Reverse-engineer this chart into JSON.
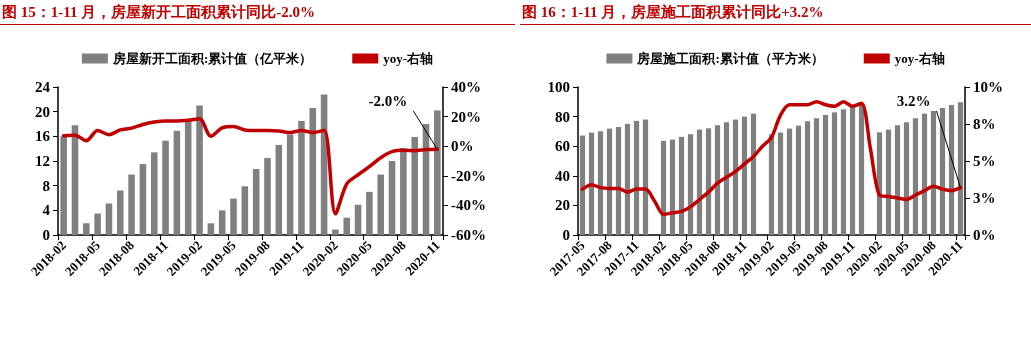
{
  "chart_data": [
    {
      "type": "bar",
      "title": "图 15：1-11 月，房屋新开工面积累计同比-2.0%",
      "categories": [
        "2018-02",
        null,
        null,
        "2018-05",
        null,
        null,
        "2018-08",
        null,
        null,
        "2018-11",
        null,
        null,
        "2019-02",
        null,
        null,
        "2019-05",
        null,
        null,
        "2019-08",
        null,
        null,
        "2019-11",
        null,
        null,
        "2020-02",
        null,
        null,
        "2020-05",
        null,
        null,
        "2020-08",
        null,
        null,
        "2020-11"
      ],
      "series": [
        {
          "name": "房屋新开工面积:累计值（亿平米）",
          "color": "#808080",
          "values": [
            16.0,
            17.8,
            1.9,
            3.5,
            5.1,
            7.2,
            9.8,
            11.5,
            13.4,
            15.3,
            16.9,
            18.5,
            21.0,
            1.9,
            4.0,
            5.9,
            7.9,
            10.7,
            12.5,
            14.6,
            16.3,
            18.5,
            20.6,
            22.8,
            0.9,
            2.8,
            4.9,
            7.0,
            9.8,
            12.0,
            14.1,
            15.9,
            18.0,
            20.2
          ]
        },
        {
          "name": "yoy-右轴",
          "type": "line",
          "axis": "y2",
          "color": "#c00000",
          "values": [
            7.1,
            7.4,
            3.7,
            10.6,
            7.8,
            11.0,
            12.2,
            14.7,
            16.3,
            17.0,
            17.0,
            17.5,
            18.6,
            6.7,
            12.4,
            13.3,
            11.0,
            10.6,
            10.6,
            10.3,
            9.2,
            10.6,
            9.2,
            10.8,
            -45.7,
            -25.5,
            -19.3,
            -13.8,
            -7.8,
            -3.7,
            -2.8,
            -3.0,
            -2.3,
            -2.0
          ]
        }
      ],
      "ylim": [
        0,
        24
      ],
      "yticks": [
        0,
        4,
        8,
        12,
        16,
        20,
        24
      ],
      "y2lim": [
        -60,
        40
      ],
      "y2ticks": [
        {
          "value": -60,
          "label": "-60%"
        },
        {
          "value": -40,
          "label": "-40%"
        },
        {
          "value": -20,
          "label": "-20%"
        },
        {
          "value": 0,
          "label": "0%"
        },
        {
          "value": 20,
          "label": "20%"
        },
        {
          "value": 40,
          "label": "40%"
        }
      ],
      "annotations": [
        {
          "text": "-2.0%",
          "x": "2020-11",
          "y": 13.9
        }
      ],
      "legend": "top",
      "grid": false,
      "marker": "none"
    },
    {
      "type": "bar",
      "title": "图 16：1-11 月，房屋施工面积累计同比+3.2%",
      "categories": [
        "2017-05",
        null,
        null,
        "2017-08",
        null,
        null,
        "2017-11",
        null,
        null,
        "2018-02",
        null,
        null,
        "2018-05",
        null,
        null,
        "2018-08",
        null,
        null,
        "2018-11",
        null,
        null,
        "2019-02",
        null,
        null,
        "2019-05",
        null,
        null,
        "2019-08",
        null,
        null,
        "2019-11",
        null,
        null,
        "2020-02",
        null,
        null,
        "2020-05",
        null,
        null,
        "2020-08",
        null,
        null,
        "2020-11"
      ],
      "series": [
        {
          "name": "房屋施工面积:累计值（平方米）",
          "color": "#808080",
          "values": [
            67.2,
            69.2,
            70.1,
            71.9,
            73.0,
            75.1,
            77.1,
            78.0,
            null,
            63.6,
            64.5,
            66.3,
            68.1,
            71.2,
            72.1,
            74.2,
            76.2,
            78.0,
            80.0,
            82.0,
            null,
            68.0,
            69.2,
            71.9,
            73.9,
            76.9,
            78.9,
            81.1,
            82.9,
            84.9,
            87.0,
            89.0,
            null,
            69.4,
            71.2,
            74.2,
            76.2,
            78.9,
            82.0,
            83.8,
            85.8,
            87.9,
            89.7
          ]
        },
        {
          "name": "yoy-右轴",
          "type": "line",
          "axis": "y2",
          "color": "#c00000",
          "values": [
            3.1,
            3.4,
            3.2,
            3.15,
            3.15,
            2.9,
            3.1,
            3.1,
            2.3,
            1.4,
            1.5,
            1.6,
            1.9,
            2.4,
            2.9,
            3.5,
            3.9,
            4.3,
            4.8,
            5.3,
            6.0,
            6.6,
            8.1,
            8.8,
            8.8,
            8.8,
            9.0,
            8.8,
            8.7,
            9.0,
            8.7,
            8.9,
            5.8,
            2.7,
            2.6,
            2.5,
            2.4,
            2.7,
            3.0,
            3.3,
            3.1,
            3.0,
            3.2
          ]
        }
      ],
      "ylim": [
        0,
        100
      ],
      "yticks": [
        0,
        20,
        40,
        60,
        80,
        100
      ],
      "y2lim": [
        0,
        10
      ],
      "y2ticks": [
        {
          "value": 0,
          "label": "0%"
        },
        {
          "value": 2.5,
          "label": "3%"
        },
        {
          "value": 5,
          "label": "5%"
        },
        {
          "value": 7.5,
          "label": "8%"
        },
        {
          "value": 10,
          "label": "10%"
        }
      ],
      "annotations": [
        {
          "text": "3.2%",
          "x": "2020-11",
          "y": 32
        }
      ],
      "legend": "top",
      "grid": false,
      "marker": "none"
    }
  ]
}
